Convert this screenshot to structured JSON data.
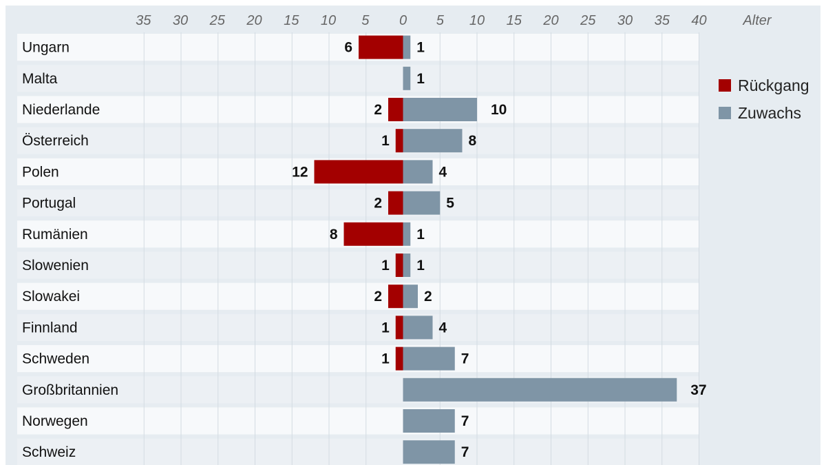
{
  "chart_data": {
    "type": "bar",
    "orientation": "horizontal",
    "axis_label": "Alter",
    "ticks_left": [
      "35",
      "30",
      "25",
      "20",
      "15",
      "10",
      "5"
    ],
    "ticks_right": [
      "0",
      "5",
      "10",
      "15",
      "20",
      "25",
      "30",
      "35",
      "40"
    ],
    "xlim": [
      -40,
      40
    ],
    "grid": true,
    "legend_position": "right",
    "categories": [
      "Ungarn",
      "Malta",
      "Niederlande",
      "Österreich",
      "Polen",
      "Portugal",
      "Rumänien",
      "Slowenien",
      "Slowakei",
      "Finnland",
      "Schweden",
      "Großbritannien",
      "Norwegen",
      "Schweiz"
    ],
    "series": [
      {
        "name": "Rückgang",
        "color": "#a30000",
        "values": [
          6,
          null,
          2,
          1,
          12,
          2,
          8,
          1,
          2,
          1,
          1,
          null,
          null,
          null
        ]
      },
      {
        "name": "Zuwachs",
        "color": "#7f95a6",
        "values": [
          1,
          1,
          10,
          8,
          4,
          5,
          1,
          1,
          2,
          4,
          7,
          37,
          7,
          7
        ]
      }
    ]
  }
}
